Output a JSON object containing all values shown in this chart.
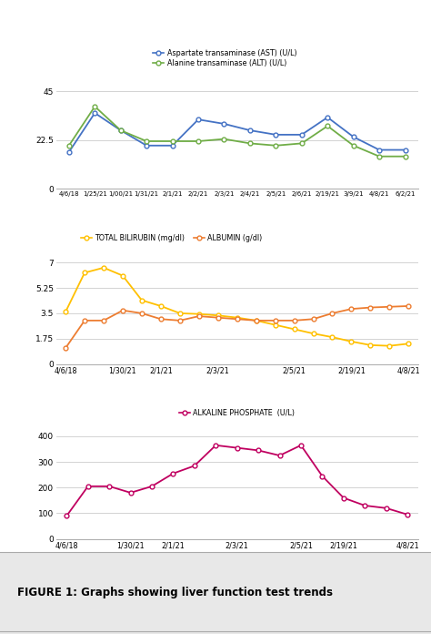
{
  "plot1": {
    "x_labels": [
      "4/6/18",
      "1/25/21",
      "1/00/21",
      "1/31/21",
      "2/1/21",
      "2/2/21",
      "2/3/21",
      "2/4/21",
      "2/5/21",
      "2/6/21",
      "2/19/21",
      "3/9/21",
      "4/8/21",
      "6/2/21"
    ],
    "ast": [
      17,
      35,
      27,
      20,
      20,
      32,
      30,
      27,
      25,
      25,
      33,
      24,
      18,
      18
    ],
    "alt": [
      20,
      38,
      27,
      22,
      22,
      22,
      23,
      21,
      20,
      21,
      29,
      20,
      15,
      15
    ],
    "ast_color": "#4472c4",
    "alt_color": "#70ad47",
    "yticks": [
      0,
      22.5,
      45
    ],
    "ylim": [
      0,
      52
    ],
    "legend_ast": "Aspartate transaminase (AST) (U/L)",
    "legend_alt": "Alanine transaminase (ALT) (U/L)"
  },
  "plot2": {
    "bili_x": [
      0,
      1,
      2,
      3,
      4,
      5,
      6,
      7,
      8,
      9,
      10,
      11,
      12,
      13,
      14,
      15,
      16,
      17,
      18
    ],
    "bili_y": [
      3.6,
      6.3,
      6.65,
      6.1,
      4.4,
      4.0,
      3.5,
      3.45,
      3.35,
      3.2,
      3.0,
      2.7,
      2.4,
      2.1,
      1.85,
      1.55,
      1.3,
      1.25,
      1.4
    ],
    "alb_x": [
      0,
      1,
      2,
      3,
      4,
      5,
      6,
      7,
      8,
      9,
      10,
      11,
      12,
      13,
      14,
      15,
      16,
      17,
      18
    ],
    "alb_y": [
      1.1,
      3.0,
      3.0,
      3.7,
      3.5,
      3.1,
      3.0,
      3.3,
      3.2,
      3.1,
      3.0,
      3.0,
      3.0,
      3.1,
      3.5,
      3.8,
      3.9,
      3.95,
      4.0
    ],
    "x_tick_pos": [
      0,
      3,
      5,
      8,
      12,
      15,
      18
    ],
    "x_tick_labels": [
      "4/6/18",
      "1/30/21",
      "2/1/21",
      "2/3/21",
      "2/5/21",
      "2/19/21",
      "4/8/21"
    ],
    "bilirubin_color": "#ffc000",
    "albumin_color": "#ed7d31",
    "yticks": [
      0,
      1.75,
      3.5,
      5.25,
      7
    ],
    "ylim": [
      0,
      7.8
    ],
    "legend_bili": "TOTAL BILIRUBIN (mg/dl)",
    "legend_alb": "ALBUMIN (g/dl)"
  },
  "plot3": {
    "alk_x": [
      0,
      1,
      2,
      3,
      4,
      5,
      6,
      7,
      8,
      9,
      10,
      11,
      12,
      13,
      14,
      15,
      16
    ],
    "alk_y": [
      90,
      205,
      205,
      180,
      205,
      255,
      285,
      365,
      355,
      345,
      325,
      365,
      245,
      160,
      130,
      120,
      95
    ],
    "x_tick_pos": [
      0,
      3,
      5,
      8,
      11,
      13,
      16
    ],
    "x_tick_labels": [
      "4/6/18",
      "1/30/21",
      "2/1/21",
      "2/3/21",
      "2/5/21",
      "2/19/21",
      "4/8/21"
    ],
    "alk_color": "#c00060",
    "yticks": [
      0,
      100,
      200,
      300,
      400
    ],
    "ylim": [
      0,
      440
    ],
    "legend_alk": "ALKALINE PHOSPHATE  (U/L)"
  },
  "figure_caption": "FIGURE 1: Graphs showing liver function test trends",
  "bg_color": "#ffffff"
}
